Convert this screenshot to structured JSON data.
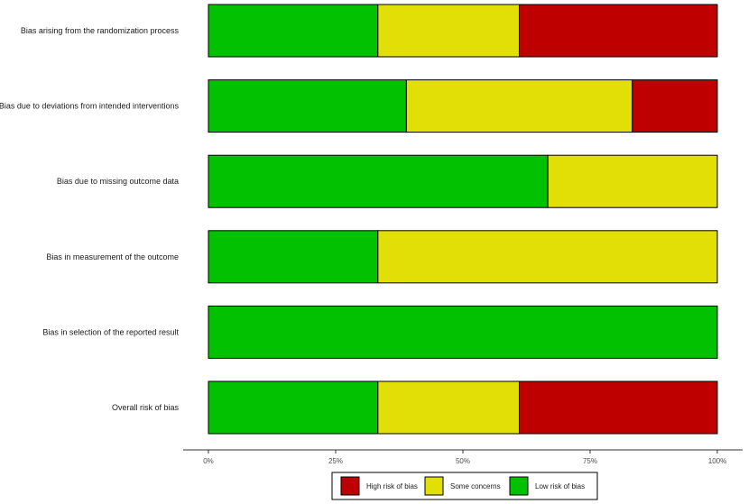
{
  "chart_data": {
    "type": "bar",
    "orientation": "horizontal",
    "stacked": true,
    "categories": [
      "Bias arising from the randomization process",
      "Bias due to deviations from intended interventions",
      "Bias due to missing outcome data",
      "Bias in measurement of the outcome",
      "Bias in selection of the reported result",
      "Overall risk of bias"
    ],
    "series": [
      {
        "name": "Low risk of bias",
        "color": "#02C100",
        "values": [
          33.3,
          38.9,
          66.7,
          33.3,
          100,
          33.3
        ]
      },
      {
        "name": "Some concerns",
        "color": "#E2DF07",
        "values": [
          27.8,
          44.4,
          33.3,
          66.7,
          0,
          27.8
        ]
      },
      {
        "name": "High risk of bias",
        "color": "#BF0000",
        "values": [
          38.9,
          16.7,
          0,
          0,
          0,
          38.9
        ]
      }
    ],
    "xlim": [
      0,
      100
    ],
    "xticks": [
      "0%",
      "25%",
      "50%",
      "75%",
      "100%"
    ],
    "xtick_values": [
      0,
      25,
      50,
      75,
      100
    ],
    "grid": false,
    "legend": {
      "position": "bottom",
      "order": [
        "High risk of bias",
        "Some concerns",
        "Low risk of bias"
      ]
    },
    "title": "",
    "xlabel": "",
    "ylabel": ""
  }
}
